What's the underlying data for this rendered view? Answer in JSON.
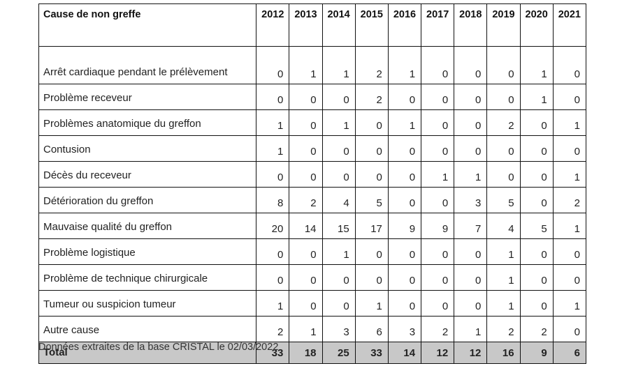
{
  "table": {
    "header_cause": "Cause de non greffe",
    "years": [
      "2012",
      "2013",
      "2014",
      "2015",
      "2016",
      "2017",
      "2018",
      "2019",
      "2020",
      "2021"
    ],
    "rows": [
      {
        "cause": "Arrêt cardiaque pendant le prélèvement",
        "values": [
          "0",
          "1",
          "1",
          "2",
          "1",
          "0",
          "0",
          "0",
          "1",
          "0"
        ]
      },
      {
        "cause": "Problème receveur",
        "values": [
          "0",
          "0",
          "0",
          "2",
          "0",
          "0",
          "0",
          "0",
          "1",
          "0"
        ]
      },
      {
        "cause": "Problèmes anatomique du greffon",
        "values": [
          "1",
          "0",
          "1",
          "0",
          "1",
          "0",
          "0",
          "2",
          "0",
          "1"
        ]
      },
      {
        "cause": "Contusion",
        "values": [
          "1",
          "0",
          "0",
          "0",
          "0",
          "0",
          "0",
          "0",
          "0",
          "0"
        ]
      },
      {
        "cause": "Décès du receveur",
        "values": [
          "0",
          "0",
          "0",
          "0",
          "0",
          "1",
          "1",
          "0",
          "0",
          "1"
        ]
      },
      {
        "cause": "Détérioration du greffon",
        "values": [
          "8",
          "2",
          "4",
          "5",
          "0",
          "0",
          "3",
          "5",
          "0",
          "2"
        ]
      },
      {
        "cause": "Mauvaise qualité du greffon",
        "values": [
          "20",
          "14",
          "15",
          "17",
          "9",
          "9",
          "7",
          "4",
          "5",
          "1"
        ]
      },
      {
        "cause": "Problème logistique",
        "values": [
          "0",
          "0",
          "1",
          "0",
          "0",
          "0",
          "0",
          "1",
          "0",
          "0"
        ]
      },
      {
        "cause": "Problème de technique chirurgicale",
        "values": [
          "0",
          "0",
          "0",
          "0",
          "0",
          "0",
          "0",
          "1",
          "0",
          "0"
        ]
      },
      {
        "cause": "Tumeur ou suspicion tumeur",
        "values": [
          "1",
          "0",
          "0",
          "1",
          "0",
          "0",
          "0",
          "1",
          "0",
          "1"
        ]
      },
      {
        "cause": "Autre cause",
        "values": [
          "2",
          "1",
          "3",
          "6",
          "3",
          "2",
          "1",
          "2",
          "2",
          "0"
        ]
      }
    ],
    "total": {
      "label": "Total",
      "values": [
        "33",
        "18",
        "25",
        "33",
        "14",
        "12",
        "12",
        "16",
        "9",
        "6"
      ]
    }
  },
  "source_note": "Données extraites de la base CRISTAL le 02/03/2022"
}
